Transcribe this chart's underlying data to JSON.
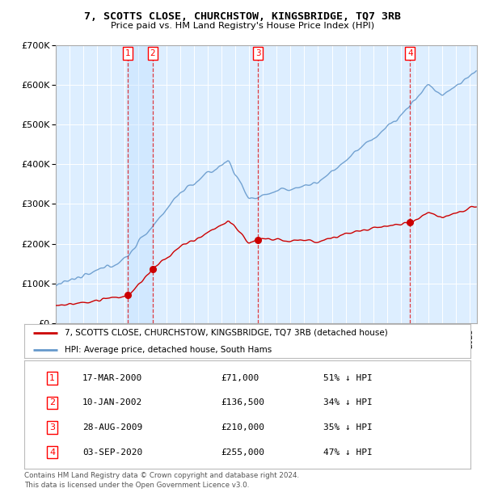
{
  "title": "7, SCOTTS CLOSE, CHURCHSTOW, KINGSBRIDGE, TQ7 3RB",
  "subtitle": "Price paid vs. HM Land Registry's House Price Index (HPI)",
  "background_color": "#ffffff",
  "plot_bg_color": "#ddeeff",
  "transactions": [
    {
      "num": 1,
      "date_f": 2000.21,
      "price": 71000,
      "label": "17-MAR-2000",
      "price_label": "£71,000",
      "pct": "51% ↓ HPI"
    },
    {
      "num": 2,
      "date_f": 2002.03,
      "price": 136500,
      "label": "10-JAN-2002",
      "price_label": "£136,500",
      "pct": "34% ↓ HPI"
    },
    {
      "num": 3,
      "date_f": 2009.65,
      "price": 210000,
      "label": "28-AUG-2009",
      "price_label": "£210,000",
      "pct": "35% ↓ HPI"
    },
    {
      "num": 4,
      "date_f": 2020.67,
      "price": 255000,
      "label": "03-SEP-2020",
      "price_label": "£255,000",
      "pct": "47% ↓ HPI"
    }
  ],
  "legend_line1": "7, SCOTTS CLOSE, CHURCHSTOW, KINGSBRIDGE, TQ7 3RB (detached house)",
  "legend_line2": "HPI: Average price, detached house, South Hams",
  "footer": "Contains HM Land Registry data © Crown copyright and database right 2024.\nThis data is licensed under the Open Government Licence v3.0.",
  "ylim": [
    0,
    700000
  ],
  "yticks": [
    0,
    100000,
    200000,
    300000,
    400000,
    500000,
    600000,
    700000
  ],
  "xlim_start": 1995,
  "xlim_end": 2025.5,
  "red_color": "#cc0000",
  "blue_color": "#6699cc",
  "shade_color": "#cce0f0"
}
